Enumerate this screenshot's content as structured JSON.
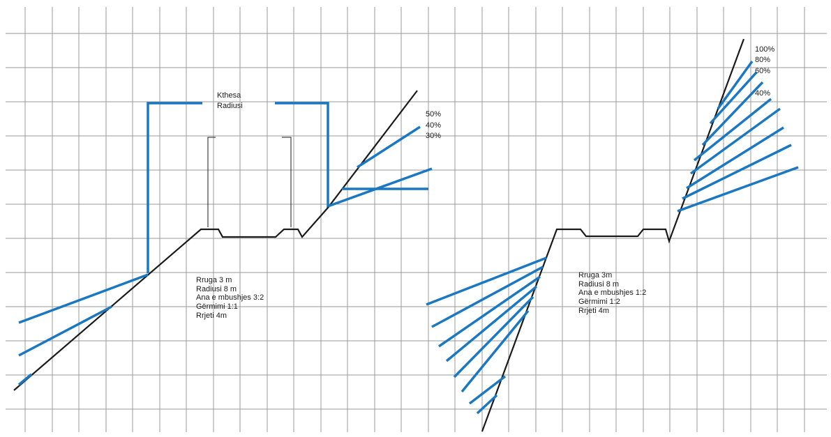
{
  "colors": {
    "grid": "#9a9a9a",
    "ground": "#1a1a1a",
    "slope": "#1a78c2",
    "text": "#1a1a1a"
  },
  "left_section": {
    "curve_label_line1": "Kthesa",
    "curve_label_line2": "Radiusi",
    "slope_labels": [
      "50%",
      "40%",
      "30%"
    ],
    "notes": [
      "Rruga 3 m",
      "Radiusi 8 m",
      "Ana e mbushjes 3:2",
      "Gërmimi 1:1",
      "Rrjeti 4m"
    ]
  },
  "right_section": {
    "slope_labels": [
      "100%",
      "80%",
      "60%",
      "40%"
    ],
    "notes": [
      "Rruga 3m",
      "Radiusi 8 m",
      "Ana e mbushjes 1:2",
      "Gërmimi 1:2",
      "Rrjeti 4m"
    ]
  }
}
